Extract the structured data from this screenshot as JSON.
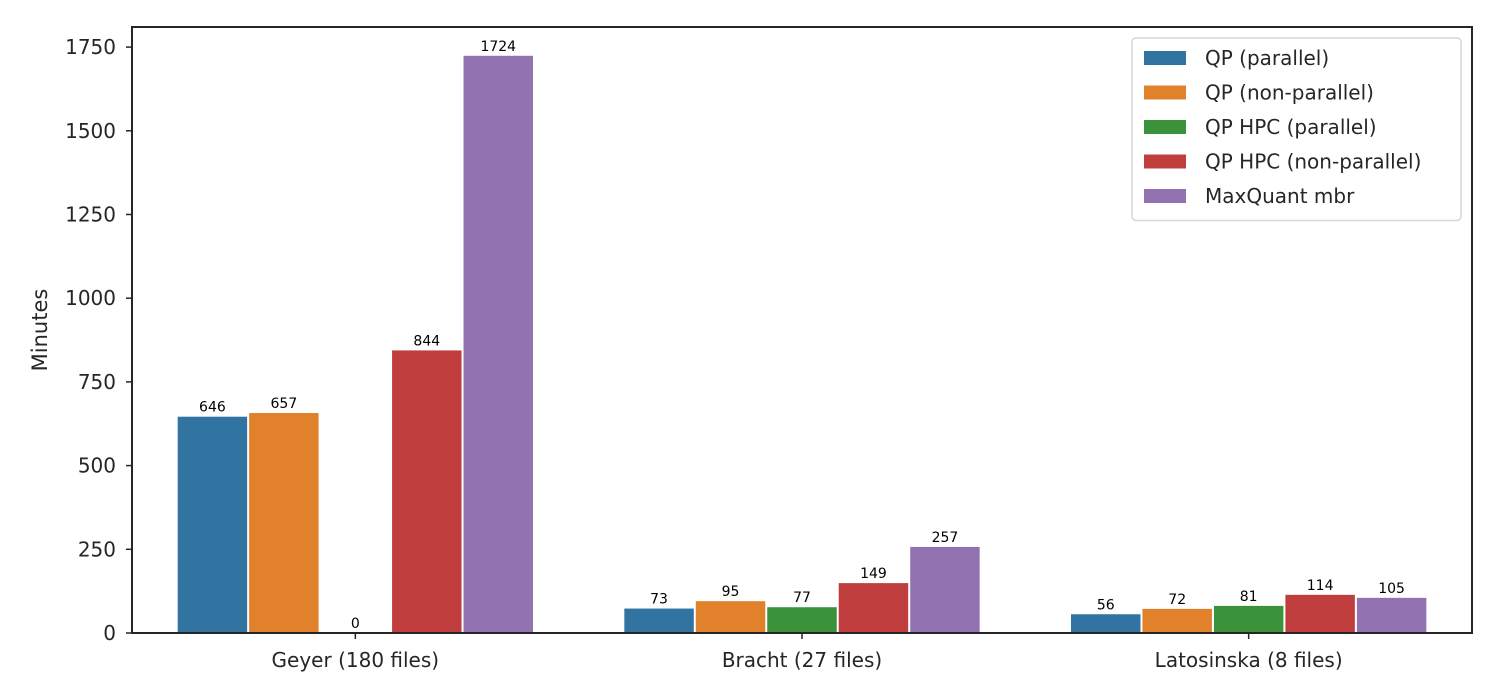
{
  "chart_data": {
    "type": "bar",
    "title": "",
    "xlabel": "",
    "ylabel": "Minutes",
    "ylim": [
      0,
      1810
    ],
    "yticks": [
      0,
      250,
      500,
      750,
      1000,
      1250,
      1500,
      1750
    ],
    "categories": [
      "Geyer (180 files)",
      "Bracht (27 files)",
      "Latosinska (8 files)"
    ],
    "series": [
      {
        "name": "QP (parallel)",
        "color": "#3274a1",
        "values": [
          646,
          73,
          56
        ]
      },
      {
        "name": "QP (non-parallel)",
        "color": "#e1812c",
        "values": [
          657,
          95,
          72
        ]
      },
      {
        "name": "QP HPC (parallel)",
        "color": "#3a923a",
        "values": [
          0,
          77,
          81
        ]
      },
      {
        "name": "QP HPC (non-parallel)",
        "color": "#c03d3e",
        "values": [
          844,
          149,
          114
        ]
      },
      {
        "name": "MaxQuant mbr",
        "color": "#9372b2",
        "values": [
          1724,
          257,
          105
        ]
      }
    ],
    "data_labels": [
      [
        "646",
        "73",
        "56"
      ],
      [
        "657",
        "95",
        "72"
      ],
      [
        "0",
        "77",
        "81"
      ],
      [
        "844",
        "149",
        "114"
      ],
      [
        "1724",
        "257",
        "105"
      ]
    ],
    "grid": false,
    "legend_position": "top-right"
  }
}
